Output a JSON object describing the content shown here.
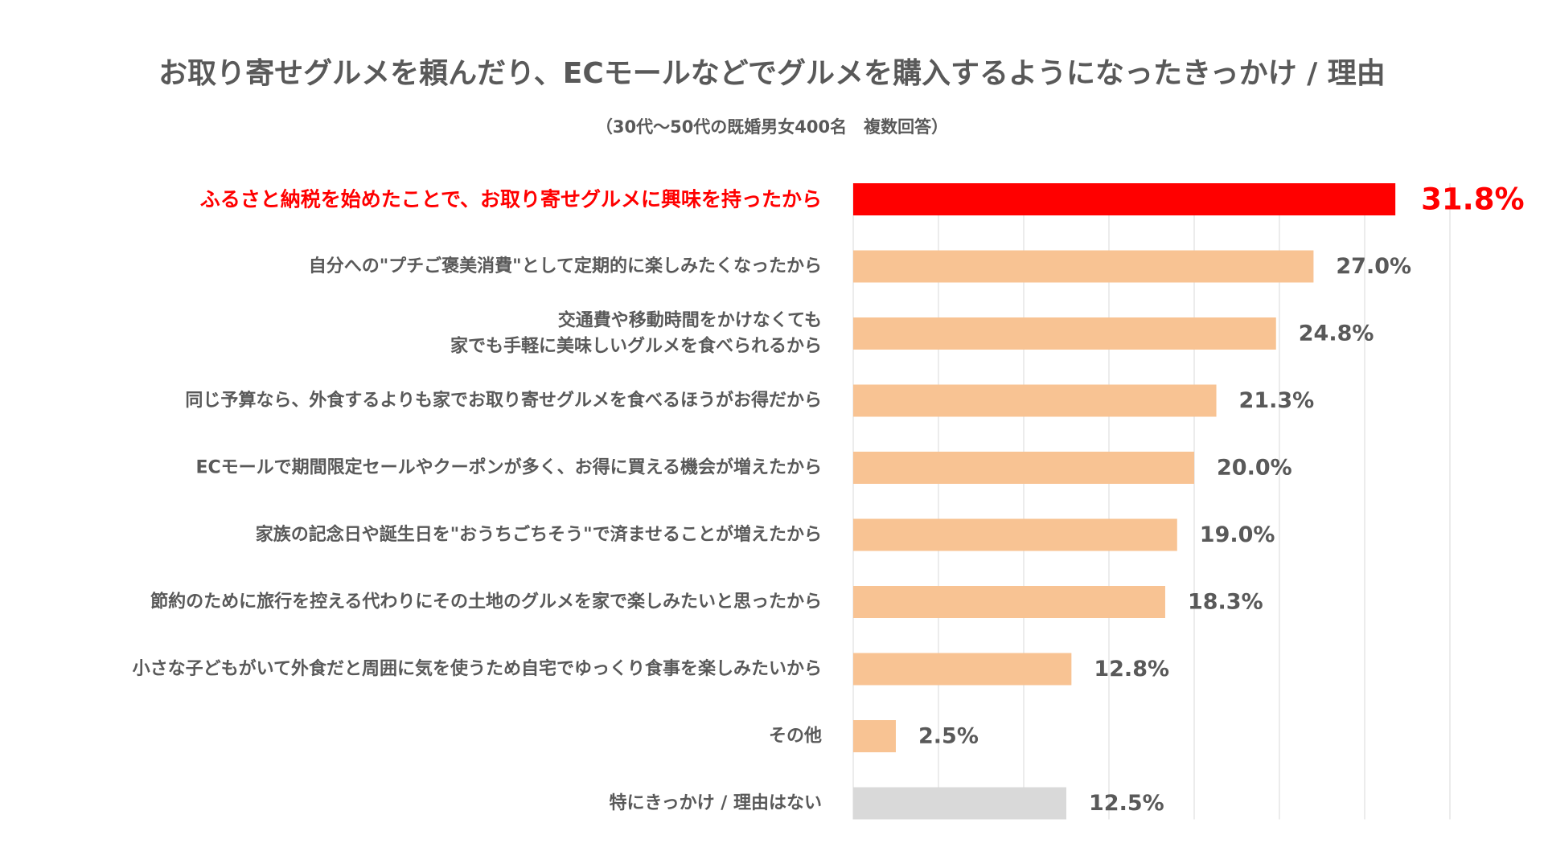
{
  "chart_data": {
    "type": "bar",
    "orientation": "horizontal",
    "title": "お取り寄せグルメを頼んだり、ECモールなどでグルメを購入するようになったきっかけ / 理由",
    "subtitle": "（30代〜50代の既婚男女400名　複数回答）",
    "categories": [
      [
        "ふるさと納税を始めたことで、お取り寄せグルメに興味を持ったから"
      ],
      [
        "自分への\"プチご褒美消費\"として定期的に楽しみたくなったから"
      ],
      [
        "交通費や移動時間をかけなくても",
        "家でも手軽に美味しいグルメを食べられるから"
      ],
      [
        "同じ予算なら、外食するよりも家でお取り寄せグルメを食べるほうがお得だから"
      ],
      [
        "ECモールで期間限定セールやクーポンが多く、お得に買える機会が増えたから"
      ],
      [
        "家族の記念日や誕生日を\"おうちごちそう\"で済ませることが増えたから"
      ],
      [
        "節約のために旅行を控える代わりにその土地のグルメを家で楽しみたいと思ったから"
      ],
      [
        "小さな子どもがいて外食だと周囲に気を使うため自宅でゆっくり食事を楽しみたいから"
      ],
      [
        "その他"
      ],
      [
        "特にきっかけ / 理由はない"
      ]
    ],
    "values": [
      31.8,
      27.0,
      24.8,
      21.3,
      20.0,
      19.0,
      18.3,
      12.8,
      2.5,
      12.5
    ],
    "value_labels": [
      "31.8%",
      "27.0%",
      "24.8%",
      "21.3%",
      "20.0%",
      "19.0%",
      "18.3%",
      "12.8%",
      "2.5%",
      "12.5%"
    ],
    "highlight_index": 0,
    "xlim": [
      0,
      35
    ],
    "grid_step": 5,
    "grid": true,
    "legend": "none",
    "colors": {
      "highlight": "#ff0000",
      "default": "#f8c393",
      "none_answer": "#d9d9d9",
      "grid": "#e6e6e6",
      "text": "#595959",
      "highlight_text": "#ff0000"
    }
  }
}
